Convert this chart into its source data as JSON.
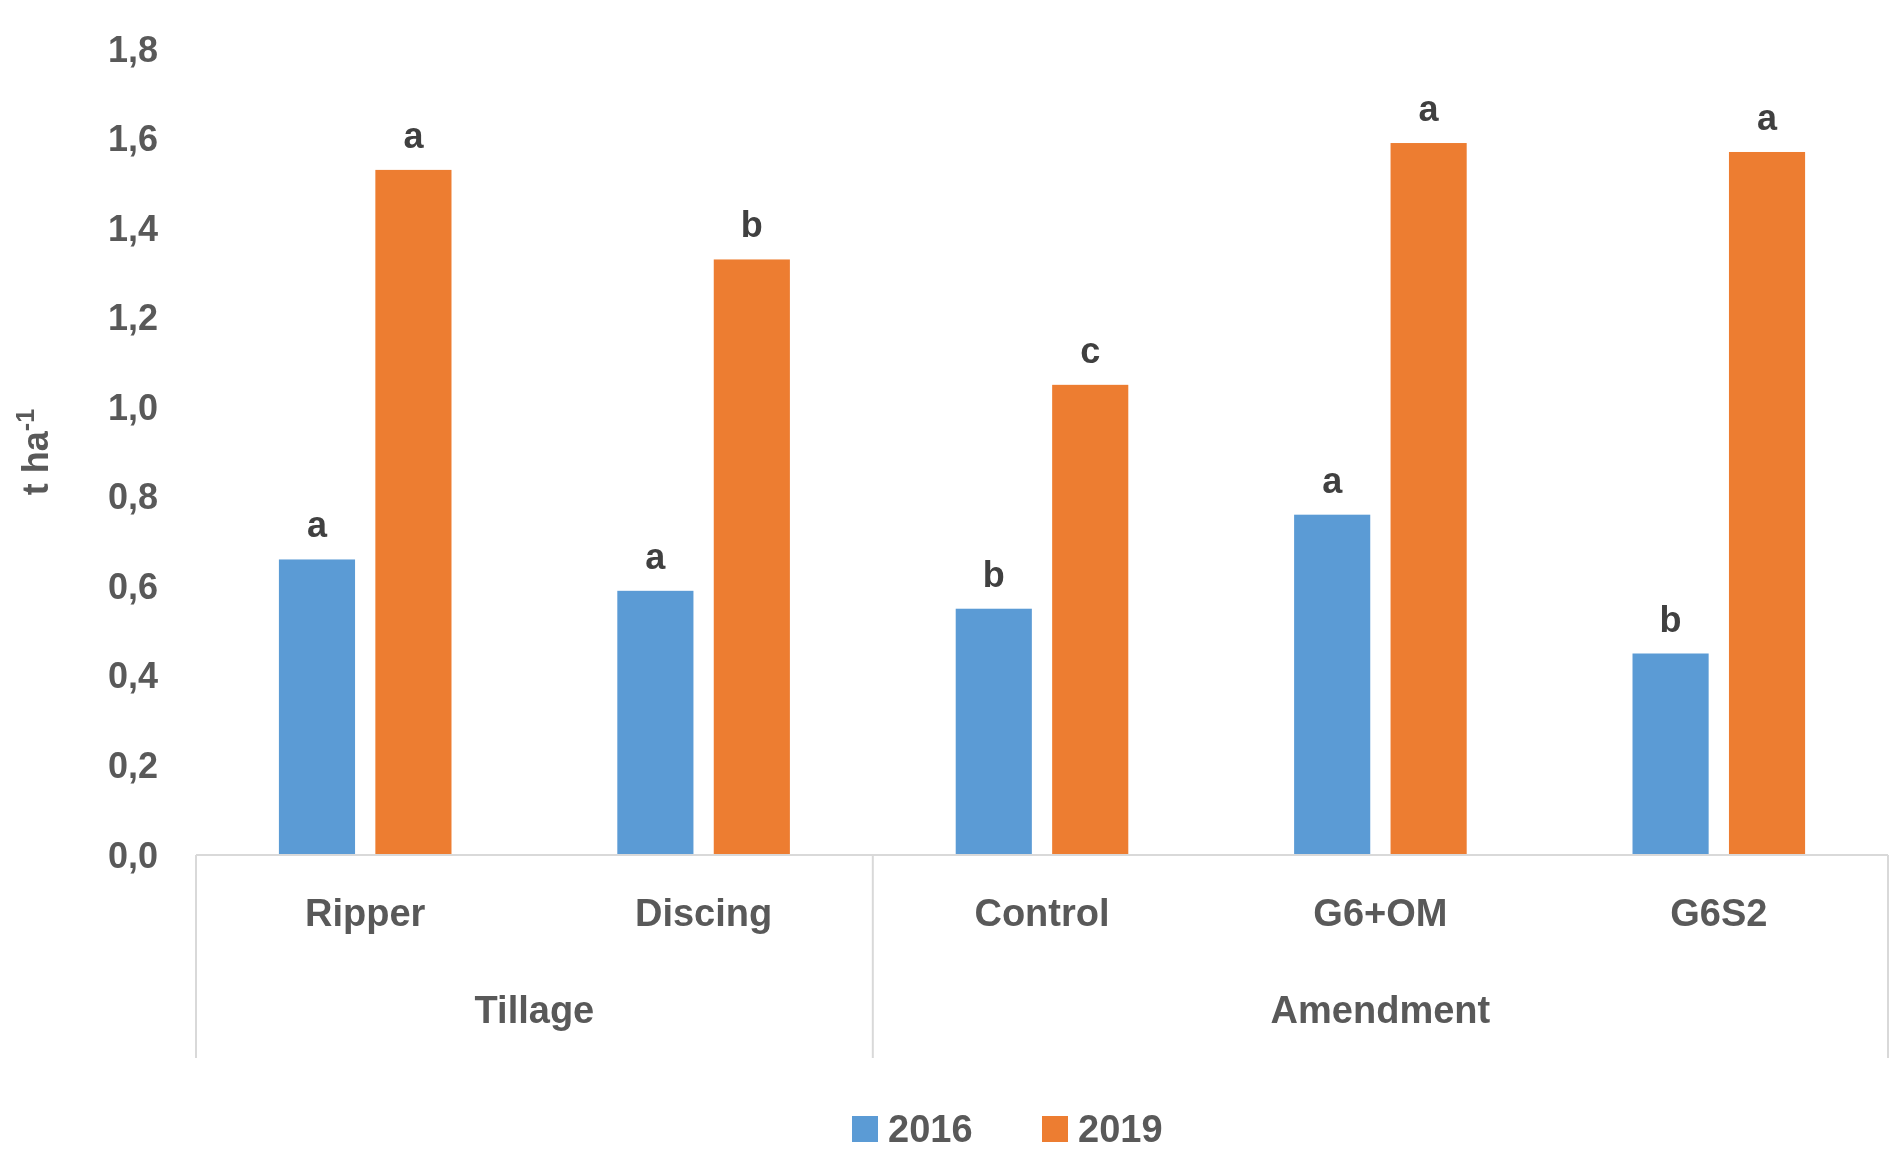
{
  "chart_data": {
    "type": "bar",
    "ylabel": "t ha$^{-1}$",
    "categories": [
      "Ripper",
      "Discing",
      "Control",
      "G6+OM",
      "G6S2"
    ],
    "series": [
      {
        "name": "2016",
        "color": "#5b9bd5",
        "values": [
          0.66,
          0.59,
          0.55,
          0.76,
          0.45
        ],
        "value_labels": [
          "a",
          "a",
          "b",
          "a",
          "b"
        ]
      },
      {
        "name": "2019",
        "color": "#ed7d31",
        "values": [
          1.53,
          1.33,
          1.05,
          1.59,
          1.57
        ],
        "value_labels": [
          "a",
          "b",
          "c",
          "a",
          "a"
        ]
      }
    ],
    "ylim": [
      0,
      1.8
    ],
    "yticks": [
      {
        "value": 0,
        "label": "0,0"
      },
      {
        "value": 0.2,
        "label": "0,2"
      },
      {
        "value": 0.4,
        "label": "0,4"
      },
      {
        "value": 0.6,
        "label": "0,6"
      },
      {
        "value": 0.8,
        "label": "0,8"
      },
      {
        "value": 1,
        "label": "1,0"
      },
      {
        "value": 1.2,
        "label": "1,2"
      },
      {
        "value": 1.4,
        "label": "1,4"
      },
      {
        "value": 1.6,
        "label": "1,6"
      },
      {
        "value": 1.8,
        "label": "1,8"
      }
    ],
    "annotations": [
      "Tillage",
      "Amendment"
    ],
    "grid": false,
    "legend": "bottom"
  }
}
